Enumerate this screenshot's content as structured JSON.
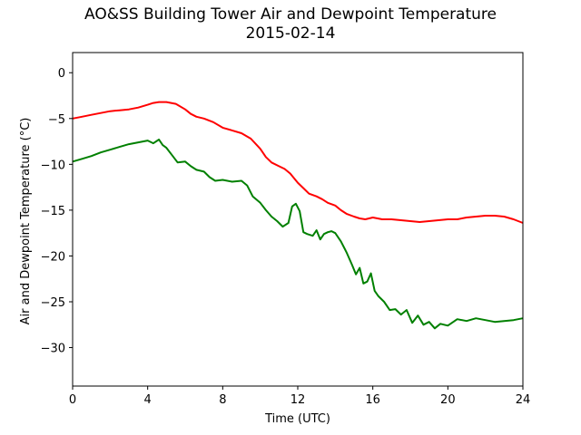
{
  "chart_data": {
    "type": "line",
    "title": "AO&SS Building Tower Air and Dewpoint Temperature",
    "subtitle": "2015-02-14",
    "xlabel": "Time (UTC)",
    "ylabel": "Air and Dewpoint Temperature (°C)",
    "xlim": [
      0,
      24
    ],
    "ylim": [
      -34.2,
      2.2
    ],
    "xticks": [
      0,
      4,
      8,
      12,
      16,
      20,
      24
    ],
    "yticks": [
      0,
      -5,
      -10,
      -15,
      -20,
      -25,
      -30
    ],
    "grid": false,
    "legend": "none",
    "series": [
      {
        "color": "#ff0000",
        "x": [
          0,
          0.5,
          1,
          1.5,
          2,
          2.5,
          3,
          3.5,
          4,
          4.3,
          4.6,
          5,
          5.5,
          6,
          6.3,
          6.6,
          7,
          7.5,
          8,
          8.5,
          9,
          9.5,
          10,
          10.3,
          10.6,
          11,
          11.3,
          11.6,
          12,
          12.3,
          12.6,
          13,
          13.3,
          13.6,
          14,
          14.3,
          14.6,
          15,
          15.3,
          15.6,
          16,
          16.5,
          17,
          17.5,
          18,
          18.5,
          19,
          19.5,
          20,
          20.5,
          21,
          21.5,
          22,
          22.5,
          23,
          23.5,
          24
        ],
        "y": [
          -5.0,
          -4.8,
          -4.6,
          -4.4,
          -4.2,
          -4.1,
          -4.0,
          -3.8,
          -3.5,
          -3.3,
          -3.2,
          -3.2,
          -3.4,
          -4.0,
          -4.5,
          -4.8,
          -5.0,
          -5.4,
          -6.0,
          -6.3,
          -6.6,
          -7.2,
          -8.3,
          -9.2,
          -9.8,
          -10.2,
          -10.5,
          -11.0,
          -12.0,
          -12.6,
          -13.2,
          -13.5,
          -13.8,
          -14.2,
          -14.5,
          -15.0,
          -15.4,
          -15.7,
          -15.9,
          -16.0,
          -15.8,
          -16.0,
          -16.0,
          -16.1,
          -16.2,
          -16.3,
          -16.2,
          -16.1,
          -16.0,
          -16.0,
          -15.8,
          -15.7,
          -15.6,
          -15.6,
          -15.7,
          -16.0,
          -16.4
        ]
      },
      {
        "color": "#008000",
        "x": [
          0,
          0.5,
          1,
          1.5,
          2,
          2.5,
          3,
          3.5,
          4,
          4.3,
          4.6,
          4.8,
          5,
          5.3,
          5.6,
          6,
          6.3,
          6.6,
          7,
          7.3,
          7.6,
          8,
          8.5,
          9,
          9.3,
          9.6,
          10,
          10.3,
          10.6,
          10.9,
          11.2,
          11.5,
          11.7,
          11.9,
          12.1,
          12.3,
          12.5,
          12.8,
          13,
          13.2,
          13.4,
          13.6,
          13.8,
          14,
          14.3,
          14.6,
          14.9,
          15.1,
          15.3,
          15.5,
          15.7,
          15.9,
          16.1,
          16.3,
          16.6,
          16.9,
          17.2,
          17.5,
          17.8,
          18.1,
          18.4,
          18.7,
          19,
          19.3,
          19.6,
          20,
          20.5,
          21,
          21.5,
          22,
          22.5,
          23,
          23.5,
          24
        ],
        "y": [
          -9.7,
          -9.4,
          -9.1,
          -8.7,
          -8.4,
          -8.1,
          -7.8,
          -7.6,
          -7.4,
          -7.7,
          -7.3,
          -7.9,
          -8.2,
          -9.0,
          -9.8,
          -9.7,
          -10.2,
          -10.6,
          -10.8,
          -11.4,
          -11.8,
          -11.7,
          -11.9,
          -11.8,
          -12.3,
          -13.5,
          -14.2,
          -15.0,
          -15.7,
          -16.2,
          -16.8,
          -16.4,
          -14.6,
          -14.3,
          -15.1,
          -17.4,
          -17.6,
          -17.8,
          -17.2,
          -18.2,
          -17.6,
          -17.4,
          -17.3,
          -17.5,
          -18.4,
          -19.6,
          -21.0,
          -22.0,
          -21.3,
          -23.0,
          -22.8,
          -21.9,
          -23.8,
          -24.4,
          -25.0,
          -25.9,
          -25.8,
          -26.4,
          -25.9,
          -27.3,
          -26.5,
          -27.5,
          -27.2,
          -27.9,
          -27.4,
          -27.6,
          -26.9,
          -27.1,
          -26.8,
          -27.0,
          -27.2,
          -27.1,
          -27.0,
          -26.8
        ]
      }
    ]
  }
}
